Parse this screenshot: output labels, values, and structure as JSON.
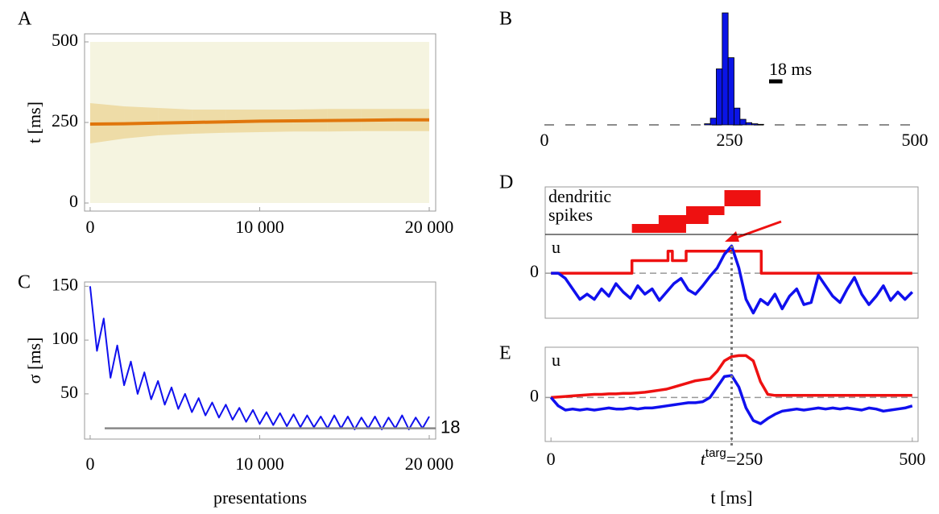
{
  "chart_data": [
    {
      "label": "A",
      "type": "density",
      "x": [
        0,
        2000,
        4000,
        6000,
        8000,
        10000,
        12000,
        14000,
        16000,
        18000,
        20000
      ],
      "values": [
        245,
        246,
        248,
        250,
        252,
        254,
        255,
        256,
        257,
        258,
        258
      ],
      "lower": [
        185,
        200,
        210,
        215,
        218,
        220,
        222,
        222,
        223,
        223,
        223
      ],
      "upper": [
        310,
        300,
        295,
        290,
        290,
        290,
        290,
        292,
        292,
        292,
        292
      ],
      "color": "#e0760c",
      "band_color": "#e8c878",
      "xlim": [
        -330,
        20380
      ],
      "ylim": [
        -25,
        525
      ],
      "xticks": [
        0,
        {
          "value": 10000,
          "label": "10 000"
        },
        {
          "value": 20000,
          "label": "20 000"
        }
      ],
      "yticks": [
        0,
        250,
        500
      ],
      "ylabel": "t [ms]"
    },
    {
      "label": "B",
      "type": "histogram",
      "bins": [
        216,
        224,
        232,
        240,
        248,
        256,
        264,
        272,
        280,
        288,
        296
      ],
      "values": [
        0.01,
        0.06,
        0.5,
        1.0,
        0.6,
        0.15,
        0.05,
        0.02,
        0.01,
        0.005
      ],
      "color": "#0a14e6",
      "xlim": [
        0,
        500
      ],
      "ylim": [
        0,
        1
      ],
      "xticks": [
        0,
        250,
        500
      ],
      "scale_bar": 18,
      "scale_bar_label": "18 ms"
    },
    {
      "label": "C",
      "type": "line",
      "x": [
        0,
        400,
        800,
        1200,
        1600,
        2000,
        2400,
        2800,
        3200,
        3600,
        4000,
        4400,
        4800,
        5200,
        5600,
        6000,
        6400,
        6800,
        7200,
        7600,
        8000,
        8400,
        8800,
        9200,
        9600,
        10000,
        10400,
        10800,
        11200,
        11600,
        12000,
        12400,
        12800,
        13200,
        13600,
        14000,
        14400,
        14800,
        15200,
        15600,
        16000,
        16400,
        16800,
        17200,
        17600,
        18000,
        18400,
        18800,
        19200,
        19600,
        20000
      ],
      "values": [
        150,
        90,
        120,
        65,
        95,
        58,
        80,
        50,
        70,
        45,
        62,
        40,
        56,
        36,
        50,
        33,
        46,
        30,
        42,
        28,
        40,
        26,
        37,
        24,
        35,
        22,
        33,
        21,
        32,
        20,
        31,
        19,
        30,
        19,
        29,
        18,
        30,
        18,
        29,
        17,
        28,
        18,
        29,
        17,
        28,
        18,
        30,
        17,
        28,
        18,
        29
      ],
      "color": "#1010ee",
      "ref_line": 18,
      "ref_color": "#888888",
      "xlim": [
        -330,
        20380
      ],
      "ylim": [
        8,
        154
      ],
      "xticks": [
        0,
        {
          "value": 10000,
          "label": "10 000"
        },
        {
          "value": 20000,
          "label": "20 000"
        }
      ],
      "yticks": [
        50,
        100,
        150
      ],
      "ylabel": "σ [ms]",
      "xlabel": "presentations"
    },
    {
      "label": "D",
      "type": "traces",
      "spikes": [
        [
          112,
          187
        ],
        [
          149,
          218
        ],
        [
          187,
          240
        ],
        [
          240,
          290
        ]
      ],
      "spike_color": "#ee1111",
      "spikes_label": [
        "dendritic",
        "spikes"
      ],
      "ylabel": "u",
      "xlim": [
        -8,
        508
      ],
      "ylim": [
        -4.3,
        3.7
      ],
      "yticks": [
        0
      ],
      "series": [
        {
          "color": "#ee1111",
          "x": [
            0,
            112,
            112,
            162,
            162,
            168,
            168,
            187,
            187,
            291,
            291,
            500
          ],
          "values": [
            0,
            0,
            1.2,
            1.2,
            2.1,
            2.1,
            1.2,
            1.2,
            2.1,
            2.1,
            0,
            0
          ]
        },
        {
          "color": "#1010ee",
          "x": [
            0,
            10,
            20,
            30,
            40,
            50,
            60,
            70,
            80,
            90,
            100,
            110,
            120,
            130,
            140,
            150,
            160,
            170,
            180,
            190,
            200,
            210,
            220,
            230,
            240,
            250,
            260,
            270,
            280,
            290,
            300,
            310,
            320,
            330,
            340,
            350,
            360,
            370,
            380,
            390,
            400,
            410,
            420,
            430,
            440,
            450,
            460,
            470,
            480,
            490,
            500
          ],
          "values": [
            0,
            0,
            -0.5,
            -1.5,
            -2.5,
            -2,
            -2.5,
            -1.5,
            -2.2,
            -1,
            -1.8,
            -2.4,
            -1.2,
            -2,
            -1.5,
            -2.6,
            -1.8,
            -1,
            -0.5,
            -1.6,
            -2,
            -1.2,
            -0.3,
            0.5,
            1.8,
            2.6,
            0.5,
            -2.5,
            -3.8,
            -2.5,
            -3,
            -2,
            -3.4,
            -2.2,
            -1.5,
            -3,
            -2.8,
            -0.2,
            -1.2,
            -2.2,
            -2.8,
            -1.5,
            -0.4,
            -2,
            -3,
            -2.2,
            -1.2,
            -2.6,
            -1.8,
            -2.5,
            -1.8
          ]
        }
      ]
    },
    {
      "label": "E",
      "type": "traces",
      "ylabel": "u",
      "xlim": [
        -8,
        508
      ],
      "ylim": [
        -4.2,
        4.8
      ],
      "yticks": [
        0
      ],
      "xticks": [
        0,
        {
          "value": 250,
          "label": "t",
          "sup": "targ",
          "suffix": "=250"
        },
        500
      ],
      "xlabel": "t [ms]",
      "series": [
        {
          "color": "#ee1111",
          "x": [
            0,
            10,
            20,
            30,
            40,
            50,
            60,
            70,
            80,
            90,
            100,
            110,
            120,
            130,
            140,
            150,
            160,
            170,
            180,
            190,
            200,
            210,
            220,
            230,
            240,
            250,
            260,
            270,
            280,
            290,
            300,
            310,
            320,
            330,
            340,
            350,
            360,
            370,
            380,
            390,
            400,
            410,
            420,
            430,
            440,
            450,
            460,
            470,
            480,
            490,
            500
          ],
          "values": [
            0,
            0.05,
            0.1,
            0.15,
            0.2,
            0.25,
            0.3,
            0.3,
            0.35,
            0.35,
            0.4,
            0.4,
            0.45,
            0.5,
            0.6,
            0.7,
            0.8,
            1,
            1.2,
            1.4,
            1.6,
            1.7,
            1.8,
            2.5,
            3.5,
            3.9,
            4,
            4,
            3.5,
            1.5,
            0.3,
            0.2,
            0.2,
            0.2,
            0.2,
            0.2,
            0.2,
            0.2,
            0.2,
            0.2,
            0.2,
            0.2,
            0.2,
            0.2,
            0.2,
            0.2,
            0.2,
            0.2,
            0.2,
            0.2,
            0.2
          ]
        },
        {
          "color": "#1010ee",
          "x": [
            0,
            10,
            20,
            30,
            40,
            50,
            60,
            70,
            80,
            90,
            100,
            110,
            120,
            130,
            140,
            150,
            160,
            170,
            180,
            190,
            200,
            210,
            220,
            230,
            240,
            250,
            260,
            270,
            280,
            290,
            300,
            310,
            320,
            330,
            340,
            350,
            360,
            370,
            380,
            390,
            400,
            410,
            420,
            430,
            440,
            450,
            460,
            470,
            480,
            490,
            500
          ],
          "values": [
            0,
            -0.8,
            -1.2,
            -1.1,
            -1.2,
            -1.1,
            -1.2,
            -1.1,
            -1,
            -1.1,
            -1.1,
            -1,
            -1.1,
            -1,
            -1,
            -0.9,
            -0.8,
            -0.7,
            -0.6,
            -0.5,
            -0.5,
            -0.4,
            0,
            1,
            2,
            2.1,
            1,
            -1,
            -2.2,
            -2.5,
            -2,
            -1.6,
            -1.3,
            -1.2,
            -1.1,
            -1.2,
            -1.1,
            -1,
            -1.1,
            -1,
            -1.1,
            -1,
            -1.1,
            -1.2,
            -1,
            -1.1,
            -1.3,
            -1.2,
            -1.1,
            -1,
            -0.8
          ]
        }
      ]
    }
  ]
}
